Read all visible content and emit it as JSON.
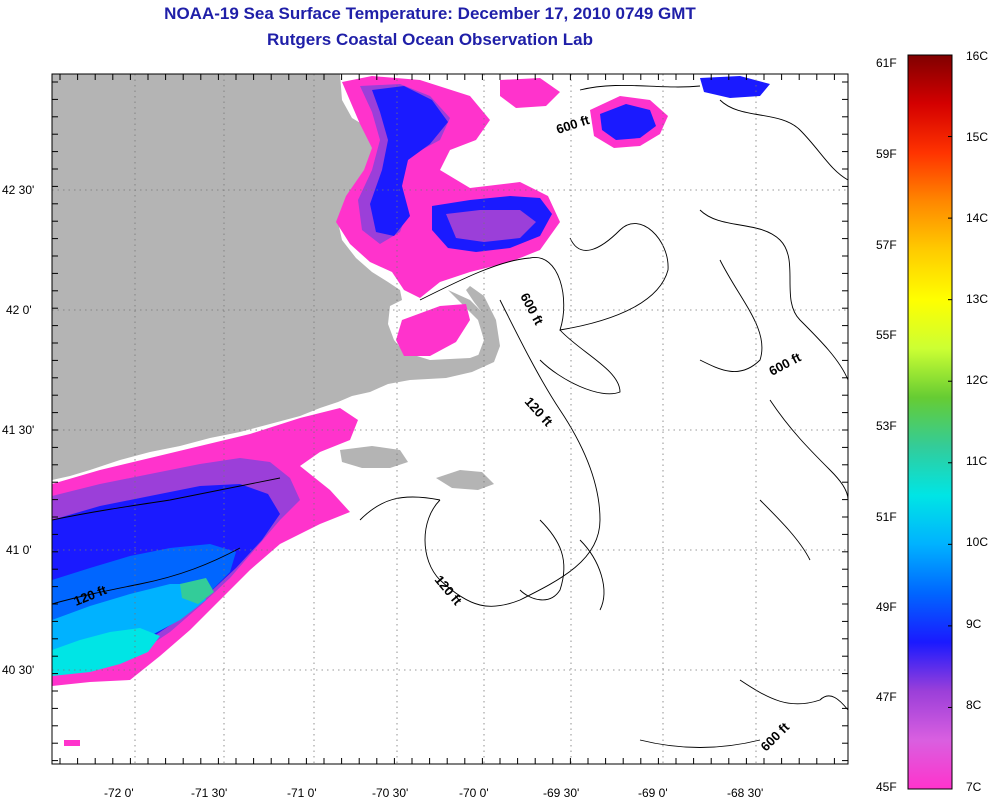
{
  "title": "NOAA-19 Sea Surface Temperature:  December 17, 2010 0749 GMT",
  "subtitle": "Rutgers Coastal Ocean Observation Lab",
  "map": {
    "lon_ticks": [
      "-72 0'",
      "-71 30'",
      "-71 0'",
      "-70 30'",
      "-70 0'",
      "-69 30'",
      "-69 0'",
      "-68 30'"
    ],
    "lat_ticks": [
      "42 30'",
      "42 0'",
      "41 30'",
      "41 0'",
      "40 30'"
    ],
    "contour_labels": [
      "600 ft",
      "600 ft",
      "600 ft",
      "120 ft",
      "120 ft",
      "120 ft",
      "600 ft"
    ]
  },
  "colorbar": {
    "fahrenheit": [
      "61F",
      "59F",
      "57F",
      "55F",
      "53F",
      "51F",
      "49F",
      "47F",
      "45F"
    ],
    "celsius": [
      "16C",
      "15C",
      "14C",
      "13C",
      "12C",
      "11C",
      "10C",
      "9C",
      "8C",
      "7C"
    ],
    "gradient": [
      "#ff33cc",
      "#d95fe0",
      "#9b3fd9",
      "#1a1aff",
      "#0066ff",
      "#00b2ff",
      "#00e5e5",
      "#33cc99",
      "#66cc33",
      "#ccff33",
      "#ffff00",
      "#ffcc00",
      "#ff8800",
      "#ff3300",
      "#d40000",
      "#800000"
    ]
  },
  "colors": {
    "land": "#b4b4b4",
    "title": "#1f1fa8",
    "cold_ssw": "#ff33cc"
  }
}
